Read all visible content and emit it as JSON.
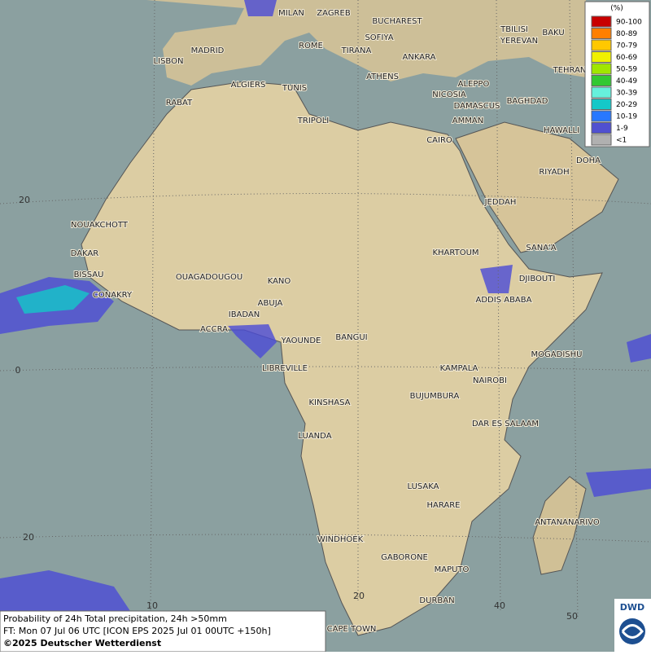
{
  "map": {
    "cities": [
      "MILAN",
      "ZAGREB",
      "BUCHAREST",
      "TBILISI",
      "BAKU",
      "SOFIYA",
      "YEREVAN",
      "MADRID",
      "ROME",
      "TIRANA",
      "ANKARA",
      "TEHRAN",
      "LISBON",
      "ATHENS",
      "ALGIERS",
      "TUNIS",
      "ALEPPO",
      "NICOSIA",
      "RABAT",
      "BAGHDAD",
      "DAMASCUS",
      "TRIPOLI",
      "AMMAN",
      "HAWALLI",
      "CAIRO",
      "DOHA",
      "RIYADH",
      "JEDDAH",
      "NOUAKCHOTT",
      "SANA'A",
      "KHARTOUM",
      "DAKAR",
      "BISSAU",
      "OUAGADOUGOU",
      "KANO",
      "DJIBOUTI",
      "CONAKRY",
      "ABUJA",
      "ADDIS ABABA",
      "IBADAN",
      "ACCRA",
      "YAOUNDE",
      "BANGUI",
      "MOGADISHU",
      "LIBREVILLE",
      "KAMPALA",
      "NAIROBI",
      "BUJUMBURA",
      "KINSHASA",
      "DAR ES SALAAM",
      "LUANDA",
      "LUSAKA",
      "HARARE",
      "ANTANANARIVO",
      "WINDHOEK",
      "GABORONE",
      "MAPUTO",
      "DURBAN",
      "CAPE TOWN"
    ],
    "lat_labels": [
      "20",
      "0",
      "20"
    ],
    "lon_labels": [
      "10",
      "20",
      "40",
      "50"
    ],
    "legend": {
      "title": "(%)",
      "items": [
        {
          "label": "90-100",
          "color": "#c80000"
        },
        {
          "label": "80-89",
          "color": "#ff7f00"
        },
        {
          "label": "70-79",
          "color": "#ffc800"
        },
        {
          "label": "60-69",
          "color": "#f0f000"
        },
        {
          "label": "50-59",
          "color": "#a0e600"
        },
        {
          "label": "40-49",
          "color": "#32c832"
        },
        {
          "label": "30-39",
          "color": "#66f0dc"
        },
        {
          "label": "20-29",
          "color": "#14c8c8"
        },
        {
          "label": "10-19",
          "color": "#2878ff"
        },
        {
          "label": "1-9",
          "color": "#5050d0"
        },
        {
          "label": "<1",
          "color": "#b0b0b0"
        }
      ]
    },
    "caption": [
      "Probability of 24h Total precipitation, 24h >50mm",
      "FT: Mon 07 Jul 06 UTC [ICON EPS 2025 Jul 01 00UTC +150h]",
      "©2025 Deutscher Wetterdienst"
    ],
    "logo": "DWD"
  }
}
